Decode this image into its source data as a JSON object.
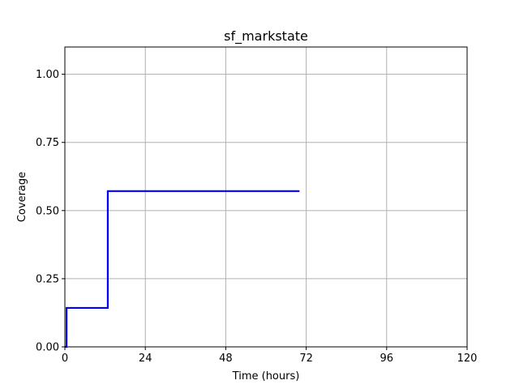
{
  "chart_data": {
    "type": "line",
    "title": "sf_markstate",
    "xlabel": "Time (hours)",
    "ylabel": "Coverage",
    "xlim": [
      0,
      120
    ],
    "ylim": [
      0,
      1.1
    ],
    "x_ticks": [
      0,
      24,
      48,
      72,
      96,
      120
    ],
    "y_ticks": [
      0.0,
      0.25,
      0.5,
      0.75,
      1.0
    ],
    "x_tick_labels": [
      "0",
      "24",
      "48",
      "72",
      "96",
      "120"
    ],
    "y_tick_labels": [
      "0.00",
      "0.25",
      "0.50",
      "0.75",
      "1.00"
    ],
    "grid": true,
    "line_style": "step",
    "series": [
      {
        "color": "#0000ff",
        "x": [
          0,
          0.5,
          0.5,
          12.8,
          12.8,
          70
        ],
        "y": [
          0,
          0,
          0.1429,
          0.1429,
          0.5714,
          0.5714
        ]
      }
    ]
  }
}
